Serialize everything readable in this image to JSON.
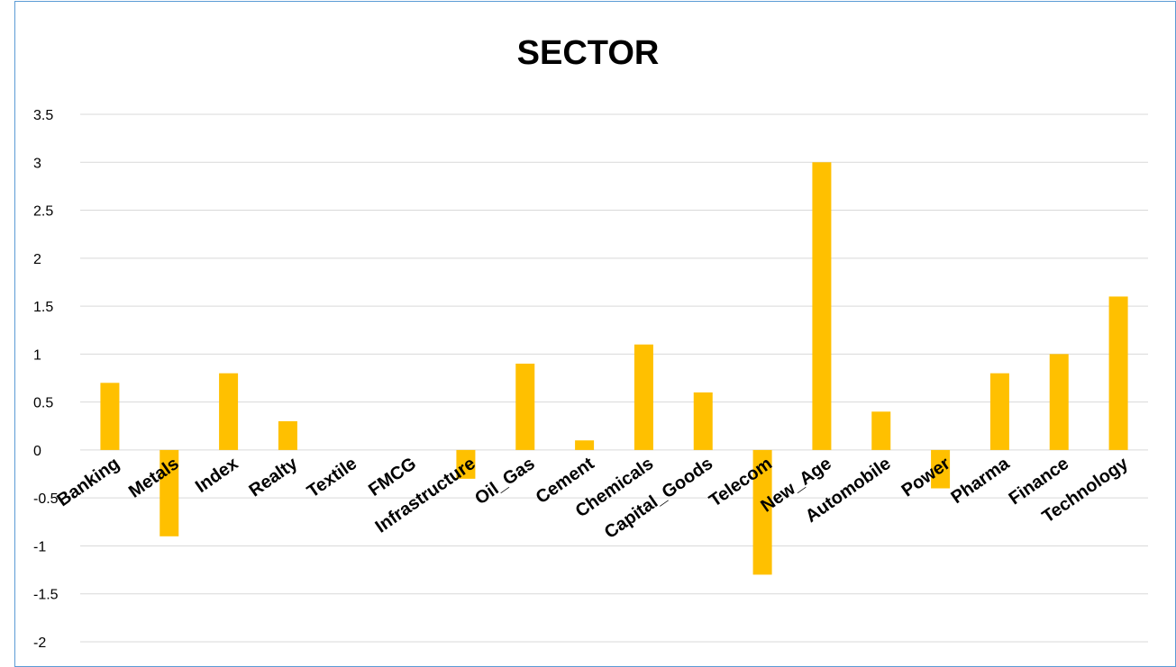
{
  "chart_data": {
    "type": "bar",
    "title": "SECTOR",
    "xlabel": "",
    "ylabel": "",
    "categories": [
      "Banking",
      "Metals",
      "Index",
      "Realty",
      "Textile",
      "FMCG",
      "Infrastructure",
      "Oil_Gas",
      "Cement",
      "Chemicals",
      "Capital_Goods",
      "Telecom",
      "New_Age",
      "Automobile",
      "Power",
      "Pharma",
      "Finance",
      "Technology"
    ],
    "values": [
      0.7,
      -0.9,
      0.8,
      0.3,
      0,
      0,
      -0.3,
      0.9,
      0.1,
      1.1,
      0.6,
      -1.3,
      3.0,
      0.4,
      -0.4,
      0.8,
      1.0,
      1.6
    ],
    "y_ticks": [
      "3.5",
      "3",
      "2.5",
      "2",
      "1.5",
      "1",
      "0.5",
      "0",
      "-0.5",
      "-1",
      "-1.5",
      "-2"
    ],
    "ylim": [
      -2,
      3.5
    ],
    "grid": true,
    "legend": "none",
    "colors": {
      "bar": "#ffc000",
      "grid": "#d9d9d9",
      "frame": "#5b9bd5"
    }
  }
}
